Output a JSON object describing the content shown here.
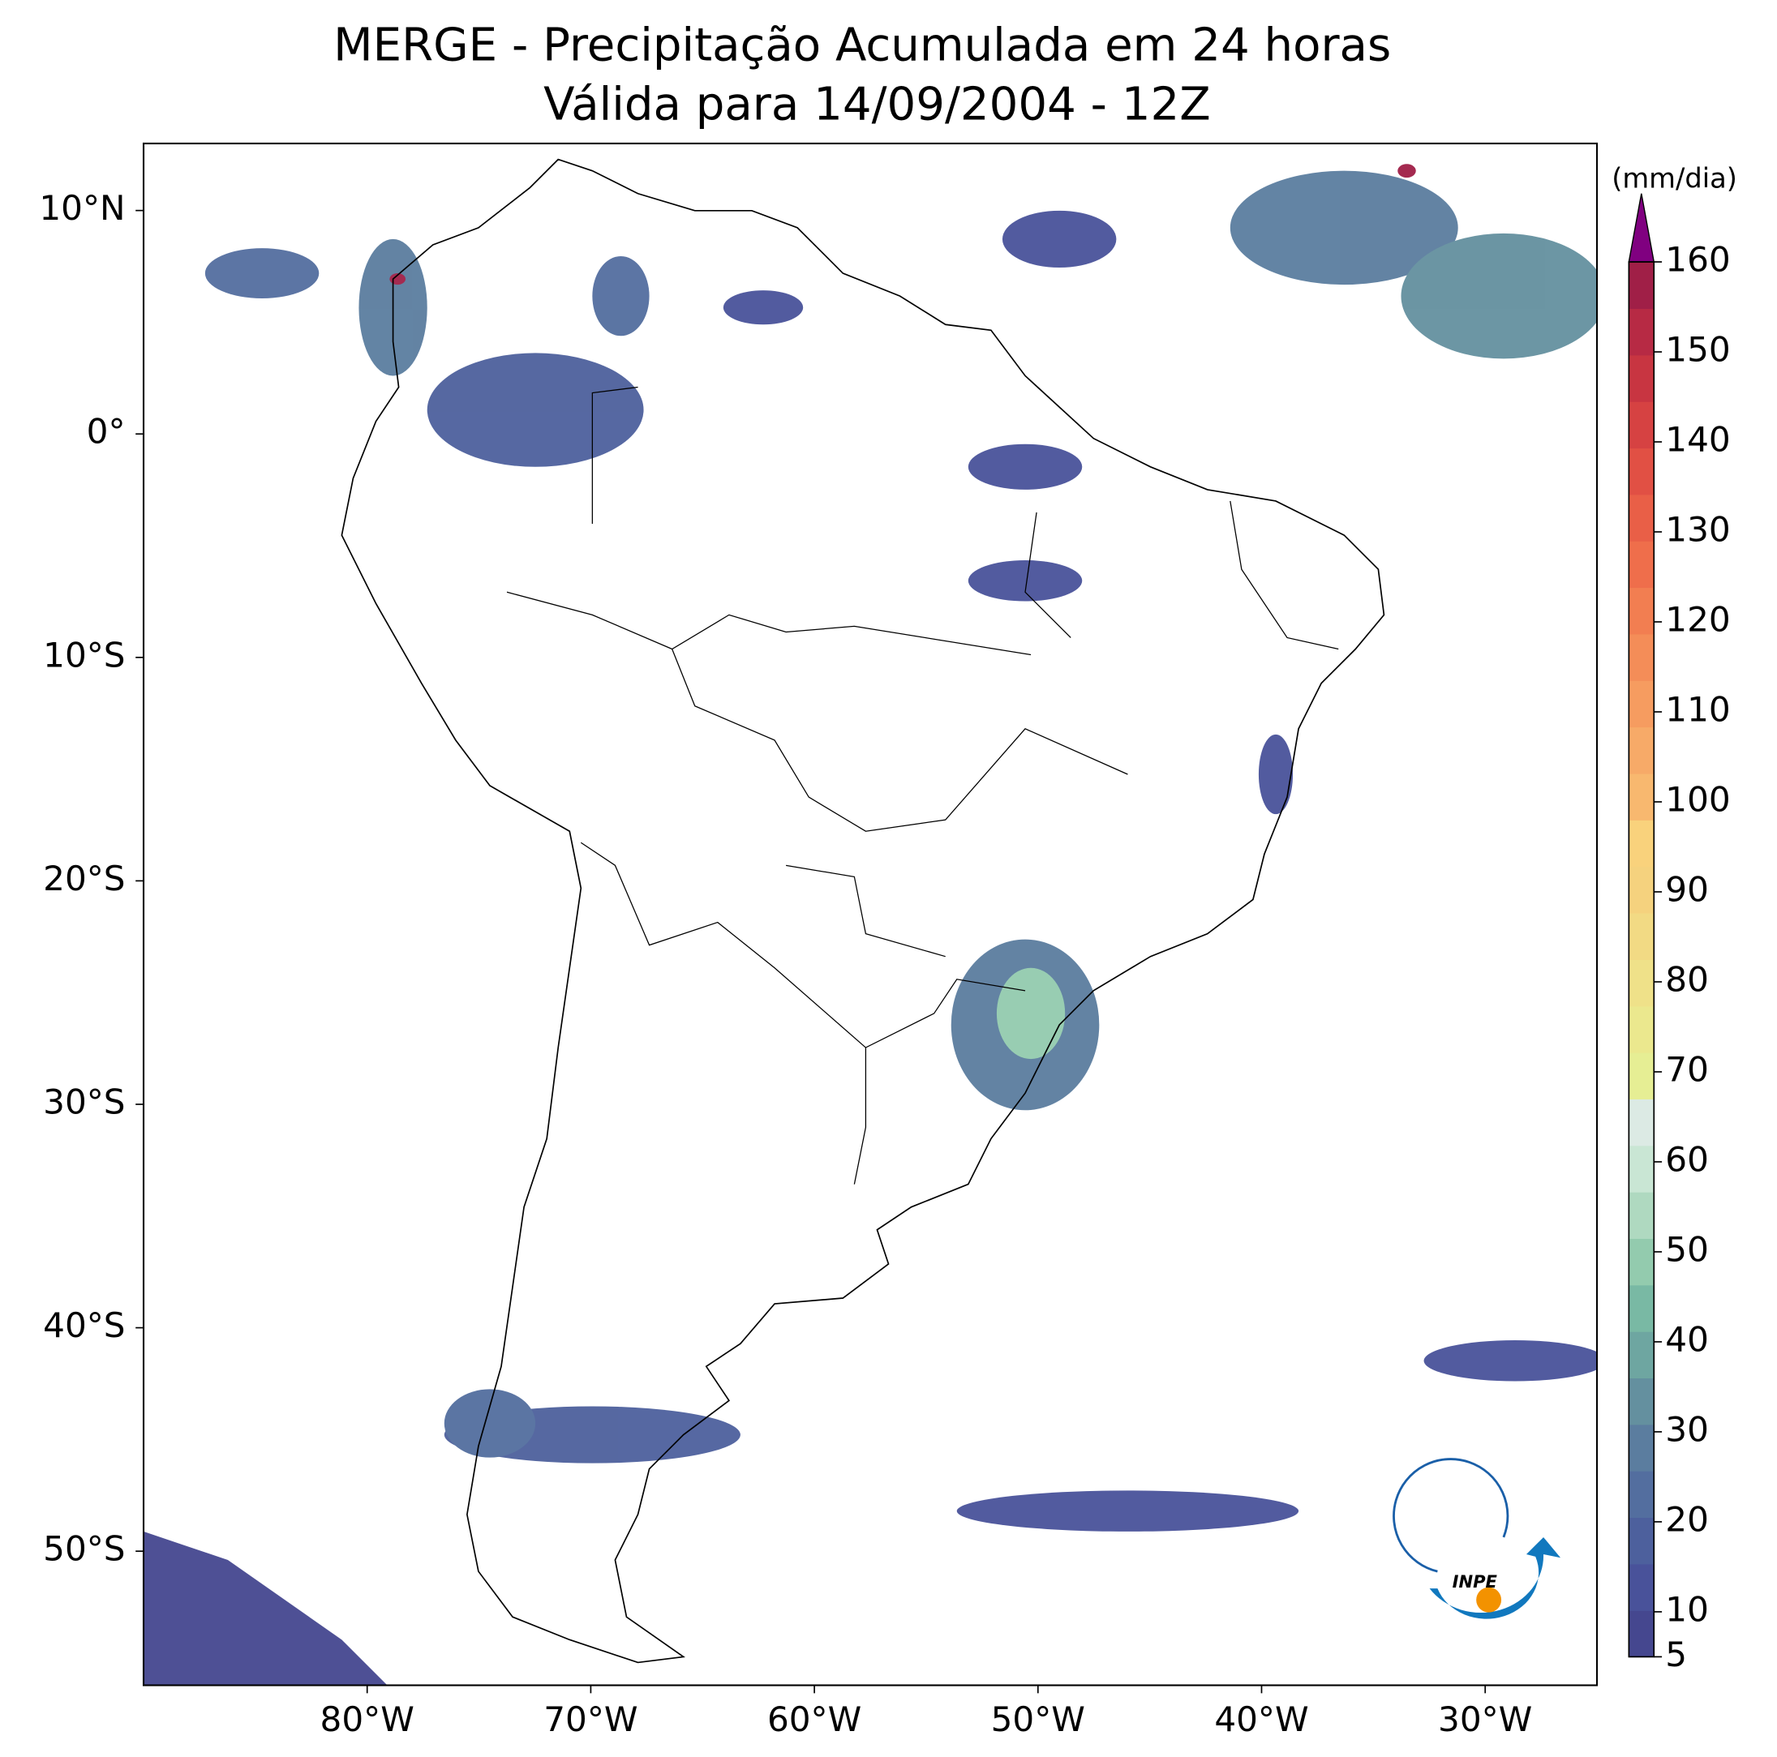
{
  "map": {
    "title": [
      "MERGE - Precipitação Acumulada em 24 horas",
      "Válida para 14/09/2004 - 12Z"
    ],
    "xlim": [
      -90,
      -25
    ],
    "ylim": [
      -56,
      13
    ],
    "xticks": [
      {
        "value": -80,
        "label": "80°W"
      },
      {
        "value": -70,
        "label": "70°W"
      },
      {
        "value": -60,
        "label": "60°W"
      },
      {
        "value": -50,
        "label": "50°W"
      },
      {
        "value": -40,
        "label": "40°W"
      },
      {
        "value": -30,
        "label": "30°W"
      }
    ],
    "yticks": [
      {
        "value": 10,
        "label": "10°N"
      },
      {
        "value": 0,
        "label": "0°"
      },
      {
        "value": -10,
        "label": "10°S"
      },
      {
        "value": -20,
        "label": "20°S"
      },
      {
        "value": -30,
        "label": "30°S"
      },
      {
        "value": -40,
        "label": "40°S"
      },
      {
        "value": -50,
        "label": "50°S"
      }
    ]
  },
  "colorbar": {
    "unit": "(mm/dia)",
    "lim": [
      5,
      160
    ],
    "ticks": [
      5,
      10,
      20,
      30,
      40,
      50,
      60,
      70,
      80,
      90,
      100,
      110,
      120,
      130,
      140,
      150,
      160
    ],
    "colors": [
      "#45478f",
      "#49529a",
      "#4d609d",
      "#536e9f",
      "#5b7d9f",
      "#64909f",
      "#6ea6a1",
      "#79b9a4",
      "#93cbae",
      "#afd9c0",
      "#c9e6d4",
      "#dceae4",
      "#e6ee94",
      "#ebe88e",
      "#efe189",
      "#f2da84",
      "#f5d27e",
      "#f9d27c",
      "#f8b86f",
      "#f7aa68",
      "#f69c60",
      "#f48d58",
      "#f27e51",
      "#ef6e4b",
      "#e95f47",
      "#e15044",
      "#d64242",
      "#c83541",
      "#b72a44",
      "#a01f47"
    ],
    "extend_color": "#800080"
  },
  "logo": {
    "text": "INPE"
  }
}
